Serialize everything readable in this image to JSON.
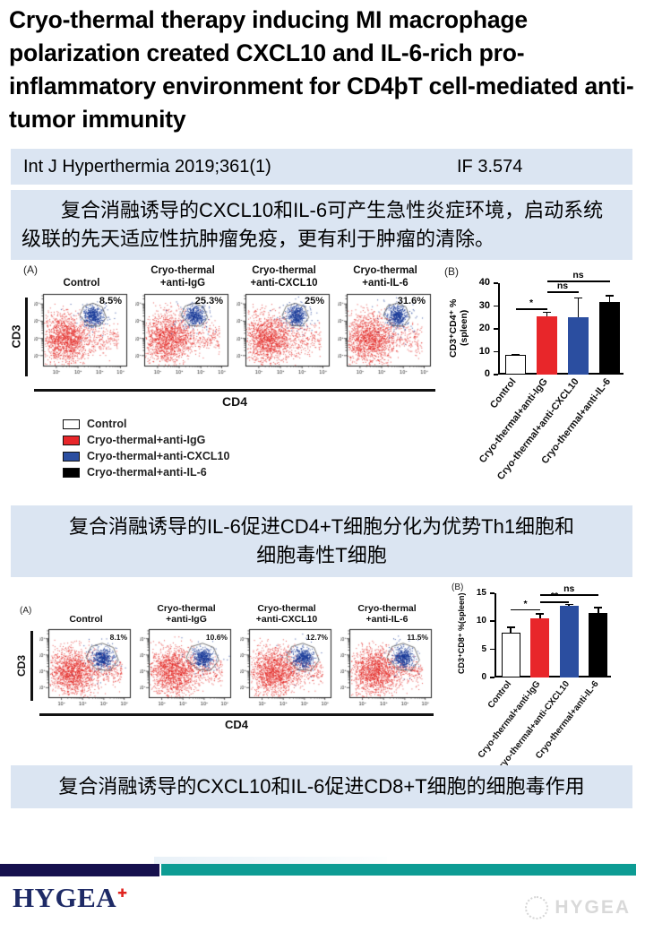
{
  "title": "Cryo-thermal therapy inducing MI macrophage polarization created CXCL10 and IL-6-rich pro-inflammatory environment for CD4þT cell-mediated anti-tumor immunity",
  "journal_bar": {
    "reference": "Int J Hyperthermia 2019;361(1)",
    "impact_factor": "IF 3.574"
  },
  "summary_blocks": {
    "block1": "复合消融诱导的CXCL10和IL-6可产生急性炎症环境，启动系统级联的先天适应性抗肿瘤免疫，更有利于肿瘤的清除。",
    "block2": "复合消融诱导的IL-6促进CD4+T细胞分化为优势Th1细胞和\n细胞毒性T细胞",
    "block3": "复合消融诱导的CXCL10和IL-6促进CD8+T细胞的细胞毒作用"
  },
  "figures": [
    {
      "panel_a_label": "(A)",
      "flow": {
        "x_axis": "CD4",
        "y_axis": "CD3",
        "x_ticks": [
          "10²",
          "10³",
          "10⁴",
          "10⁵"
        ],
        "y_ticks": [
          "10²",
          "10³",
          "10⁴",
          "10⁵"
        ],
        "plots": [
          {
            "title": "Control",
            "percent": "8.5%"
          },
          {
            "title": "Cryo-thermal\n+anti-IgG",
            "percent": "25.3%"
          },
          {
            "title": "Cryo-thermal\n+anti-CXCL10",
            "percent": "25%"
          },
          {
            "title": "Cryo-thermal\n+anti-IL-6",
            "percent": "31.6%"
          }
        ]
      },
      "legend": {
        "items": [
          {
            "label": "Control",
            "color": "#ffffff"
          },
          {
            "label": "Cryo-thermal+anti-IgG",
            "color": "#e8262a"
          },
          {
            "label": "Cryo-thermal+anti-CXCL10",
            "color": "#2b4ea0"
          },
          {
            "label": "Cryo-thermal+anti-IL-6",
            "color": "#000000"
          }
        ]
      }
    },
    {
      "panel_a_label": "(A)",
      "flow": {
        "x_axis": "CD4",
        "y_axis": "CD3",
        "x_ticks": [
          "10²",
          "10³",
          "10⁴",
          "10⁵"
        ],
        "y_ticks": [
          "10²",
          "10³",
          "10⁴",
          "10⁵"
        ],
        "plots": [
          {
            "title": "Control",
            "percent": "8.1%"
          },
          {
            "title": "Cryo-thermal\n+anti-IgG",
            "percent": "10.6%"
          },
          {
            "title": "Cryo-thermal\n+anti-CXCL10",
            "percent": "12.7%"
          },
          {
            "title": "Cryo-thermal\n+anti-IL-6",
            "percent": "11.5%"
          }
        ]
      }
    }
  ],
  "chart_data": [
    {
      "type": "bar",
      "panel": "(B)",
      "ylabel": "CD3⁺CD4⁺ %(spleen)",
      "categories": [
        "Control",
        "Cryo-thermal+anti-IgG",
        "Cryo-thermal+anti-CXCL10",
        "Cryo-thermal+anti-IL-6"
      ],
      "values": [
        8.5,
        25.3,
        25.0,
        31.6
      ],
      "errors": [
        0.4,
        2.0,
        8.5,
        3.0
      ],
      "bar_colors": [
        "#ffffff",
        "#e8262a",
        "#2b4ea0",
        "#000000"
      ],
      "ylim": [
        0,
        40
      ],
      "yticks": [
        0,
        10,
        20,
        30,
        40
      ],
      "significance": [
        {
          "bars": [
            0,
            1
          ],
          "label": "*",
          "y": 29
        },
        {
          "bars": [
            1,
            2
          ],
          "label": "ns",
          "y": 36.5
        },
        {
          "bars": [
            1,
            3
          ],
          "label": "ns",
          "y": 41
        }
      ]
    },
    {
      "type": "bar",
      "panel": "(B)",
      "ylabel": "CD3⁺CD8⁺ %(spleen)",
      "categories": [
        "Control",
        "Cryo-thermal+anti-IgG",
        "Cryo-thermal+anti-CXCL10",
        "Cryo-thermal+anti-IL-6"
      ],
      "values": [
        8.0,
        10.5,
        12.7,
        11.5
      ],
      "errors": [
        0.9,
        0.8,
        0.3,
        0.9
      ],
      "bar_colors": [
        "#ffffff",
        "#e8262a",
        "#2b4ea0",
        "#000000"
      ],
      "ylim": [
        0,
        15
      ],
      "yticks": [
        0,
        5,
        10,
        15
      ],
      "significance": [
        {
          "bars": [
            0,
            1
          ],
          "label": "*",
          "y": 12.2
        },
        {
          "bars": [
            1,
            2
          ],
          "label": "**",
          "y": 13.5
        },
        {
          "bars": [
            1,
            3
          ],
          "label": "ns",
          "y": 14.8
        }
      ]
    }
  ],
  "footer": {
    "brand": "HYGEA",
    "brand_mark": "✚",
    "watermark": "HYGEA"
  }
}
